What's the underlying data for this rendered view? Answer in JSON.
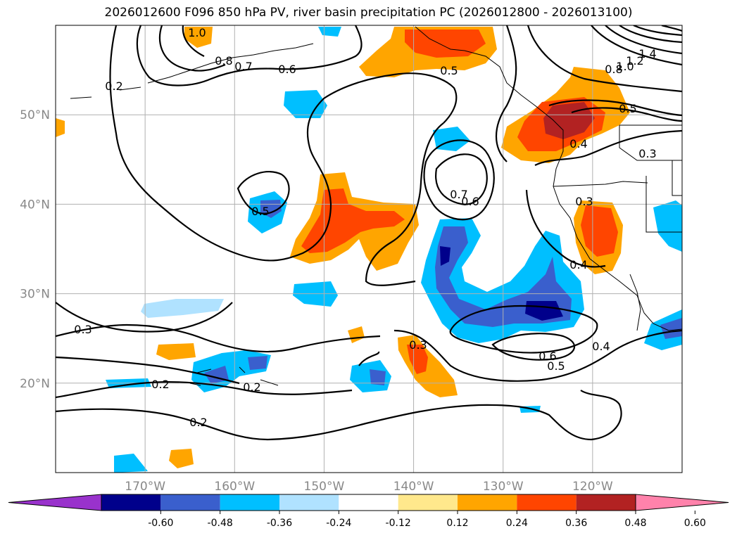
{
  "title": "2026012600 F096 850 hPa PV, river basin precipitation PC (2026012800 - 2026013100)",
  "map": {
    "lon_range": [
      -180,
      -110
    ],
    "lat_range": [
      10,
      60
    ],
    "lat_ticks": [
      {
        "lat": 50,
        "label": "50°N"
      },
      {
        "lat": 40,
        "label": "40°N"
      },
      {
        "lat": 30,
        "label": "30°N"
      },
      {
        "lat": 20,
        "label": "20°N"
      }
    ],
    "lon_ticks": [
      {
        "lon": -170,
        "label": "170°W"
      },
      {
        "lon": -160,
        "label": "160°W"
      },
      {
        "lon": -150,
        "label": "150°W"
      },
      {
        "lon": -140,
        "label": "140°W"
      },
      {
        "lon": -130,
        "label": "130°W"
      },
      {
        "lon": -120,
        "label": "120°W"
      }
    ],
    "contour_labels": [
      "1.0",
      "0.8",
      "0.7",
      "0.6",
      "0.5",
      "0.2",
      "0.5",
      "0.7",
      "0.6",
      "0.3",
      "0.4",
      "0.4",
      "0.3",
      "0.3",
      "0.2",
      "0.2",
      "0.2",
      "0.3",
      "0.6",
      "0.5",
      "0.4",
      "1.4",
      "1.2",
      "1.0",
      "0.8",
      "0.5"
    ]
  },
  "colorbar": {
    "ticks": [
      "-0.60",
      "-0.48",
      "-0.36",
      "-0.24",
      "-0.12",
      "0.12",
      "0.24",
      "0.36",
      "0.48",
      "0.60"
    ],
    "colors": [
      "#9932cc",
      "#00008b",
      "#3a5fcd",
      "#00bfff",
      "#b0e2ff",
      "#ffffff",
      "#ffe88c",
      "#ffa500",
      "#ff4500",
      "#b22222",
      "#ff82ab"
    ]
  }
}
